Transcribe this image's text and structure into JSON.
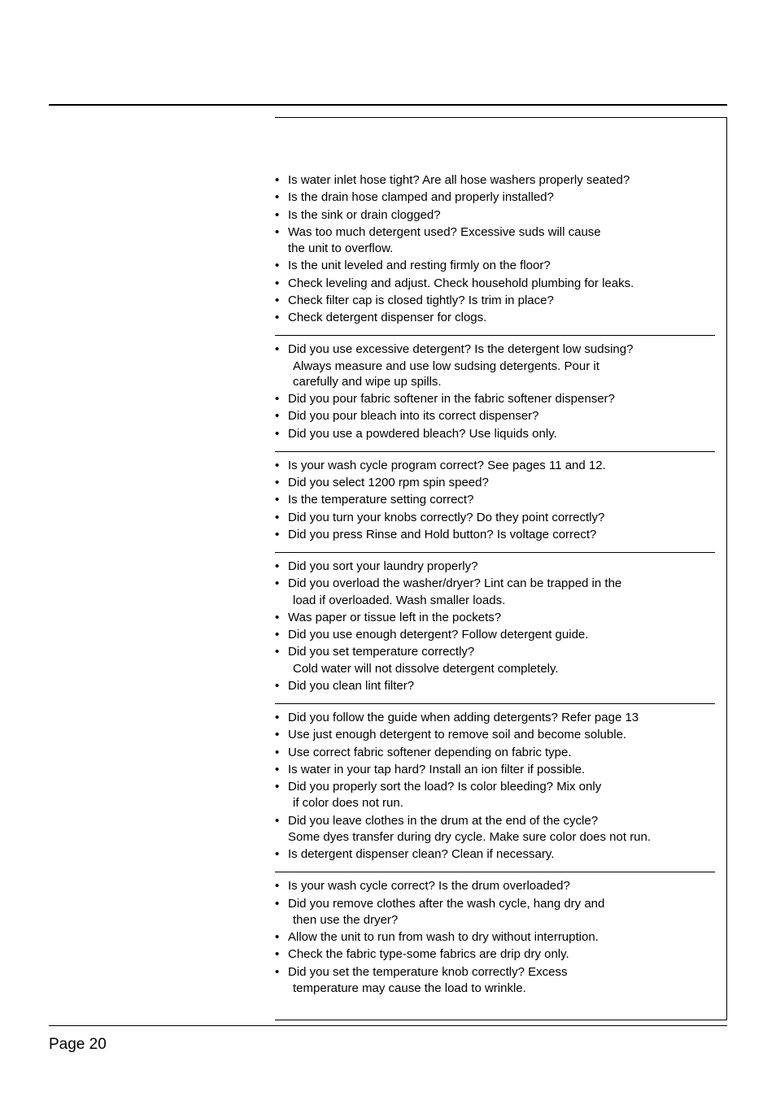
{
  "page": {
    "number_label": "Page 20"
  },
  "colors": {
    "text": "#000000",
    "background": "#ffffff",
    "rule": "#000000"
  },
  "typography": {
    "body_font_family": "Verdana",
    "body_font_size_pt": 11,
    "page_number_font_size_pt": 14
  },
  "sections": [
    {
      "id": "leaks",
      "items": [
        {
          "text": "Is water inlet hose tight? Are all hose washers properly seated?"
        },
        {
          "text": "Is the drain hose clamped and properly installed?"
        },
        {
          "text": "Is the sink or drain clogged?"
        },
        {
          "text": "Was too much detergent used? Excessive suds will cause",
          "cont": "the unit to overflow."
        },
        {
          "text": "Is the unit leveled and resting firmly on the floor?"
        },
        {
          "text": " Check leveling and adjust. Check household plumbing for leaks."
        },
        {
          "text": "Check filter cap is closed tightly? Is trim in place?"
        },
        {
          "text": "Check detergent dispenser for clogs."
        }
      ]
    },
    {
      "id": "detergent",
      "items": [
        {
          "text": "Did you use excessive detergent? Is the detergent low sudsing?",
          "cont_inner": "Always measure and use low sudsing detergents. Pour it",
          "cont_inner2": "carefully and wipe up spills."
        },
        {
          "text": "Did you pour fabric softener in the fabric softener dispenser?"
        },
        {
          "text": "Did you pour bleach into its correct dispenser?"
        },
        {
          "text": "Did you use a powdered bleach? Use liquids only."
        }
      ]
    },
    {
      "id": "cycle",
      "items": [
        {
          "text": "Is your wash cycle program correct? See pages 11 and 12."
        },
        {
          "text": "Did you select 1200 rpm spin speed?"
        },
        {
          "text": "Is the temperature setting correct?"
        },
        {
          "text": "Did you turn your knobs correctly? Do they point correctly?"
        },
        {
          "text": "Did you press Rinse and Hold button? Is voltage correct?"
        }
      ]
    },
    {
      "id": "lint",
      "items": [
        {
          "text": "Did you sort your laundry properly?"
        },
        {
          "text": "Did you overload the washer/dryer? Lint can be trapped in the",
          "cont_inner": "load if overloaded. Wash smaller loads."
        },
        {
          "text": "Was paper or tissue left in the pockets?"
        },
        {
          "text": "Did you use enough detergent? Follow detergent guide."
        },
        {
          "text": "Did you set temperature correctly?",
          "cont_inner": "Cold water will not dissolve detergent completely."
        },
        {
          "text": "Did you clean lint filter?"
        }
      ]
    },
    {
      "id": "stains",
      "items": [
        {
          "text": "Did you follow the guide when adding detergents? Refer page 13"
        },
        {
          "text": "Use just enough detergent to remove soil and become soluble."
        },
        {
          "text": "Use correct fabric softener depending on fabric type."
        },
        {
          "text": "Is water in your tap hard? Install an ion filter if possible."
        },
        {
          "text": "Did you properly sort the load? Is color bleeding? Mix only",
          "cont_inner": "if color does not run."
        },
        {
          "text": "Did you leave clothes in the drum at the end of the cycle?",
          "cont": "Some dyes transfer during dry cycle. Make sure color does not run."
        },
        {
          "text": "Is detergent dispenser clean? Clean if necessary."
        }
      ]
    },
    {
      "id": "wrinkle",
      "items": [
        {
          "text": "Is your wash cycle correct? Is the drum overloaded?"
        },
        {
          "text": "Did you remove clothes after the wash cycle, hang dry and",
          "cont_inner": "then use the dryer?"
        },
        {
          "text": "Allow the unit to run from wash to dry without interruption."
        },
        {
          "text": "Check the fabric type-some fabrics are drip dry only."
        },
        {
          "text": "Did you set the temperature knob correctly? Excess",
          "cont_inner": "temperature may cause the load to wrinkle."
        }
      ]
    }
  ]
}
